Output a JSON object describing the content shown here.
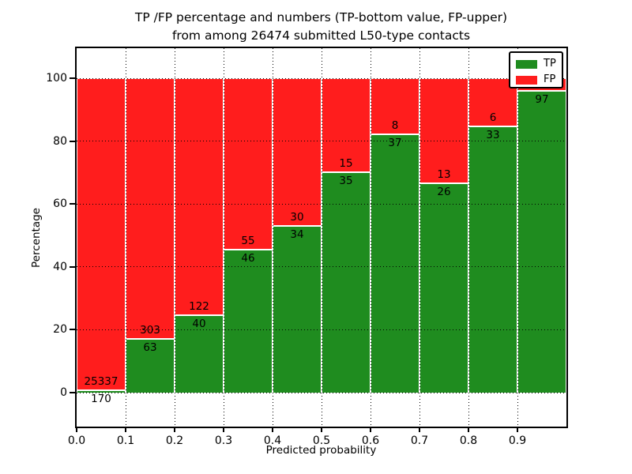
{
  "title": {
    "line1": "TP /FP percentage and numbers (TP-bottom value, FP-upper)",
    "line2": "from among 26474 submitted L50-type contacts"
  },
  "axes": {
    "x_label": "Predicted probability",
    "y_label": "Percentage",
    "x_tick_labels": [
      "0.0",
      "0.1",
      "0.2",
      "0.3",
      "0.4",
      "0.5",
      "0.6",
      "0.7",
      "0.8",
      "0.9"
    ],
    "y_tick_labels": [
      "0",
      "20",
      "40",
      "60",
      "80",
      "100"
    ],
    "y_tick_values": [
      0,
      20,
      40,
      60,
      80,
      100
    ],
    "x_range": [
      0.0,
      1.0
    ],
    "grid_style": "dotted"
  },
  "legend": {
    "position": "upper-right",
    "items": [
      {
        "label": "TP",
        "color": "#1f8c1f"
      },
      {
        "label": "FP",
        "color": "#ff1d1d"
      }
    ]
  },
  "colors": {
    "tp_green": "#1f8c1f",
    "fp_red": "#ff1d1d",
    "background": "#ffffff",
    "frame": "#000000",
    "grid": "#000000"
  },
  "chart_data": {
    "type": "bar",
    "stacked": true,
    "normalized": "each bin scaled to 100%",
    "series_order_bottom_to_top": [
      "TP",
      "FP"
    ],
    "title": "TP /FP percentage and numbers (TP-bottom value, FP-upper) from among 26474 submitted L50-type contacts",
    "xlabel": "Predicted probability",
    "ylabel": "Percentage",
    "total_submitted": 26474,
    "ylim_display": [
      -11,
      110
    ],
    "bins": [
      {
        "x_start": 0.0,
        "x_end": 0.1,
        "tp": 170,
        "fp": 25337,
        "tp_pct": 0.67
      },
      {
        "x_start": 0.1,
        "x_end": 0.2,
        "tp": 63,
        "fp": 303,
        "tp_pct": 17.21
      },
      {
        "x_start": 0.2,
        "x_end": 0.3,
        "tp": 40,
        "fp": 122,
        "tp_pct": 24.69
      },
      {
        "x_start": 0.3,
        "x_end": 0.4,
        "tp": 46,
        "fp": 55,
        "tp_pct": 45.54
      },
      {
        "x_start": 0.4,
        "x_end": 0.5,
        "tp": 34,
        "fp": 30,
        "tp_pct": 53.13
      },
      {
        "x_start": 0.5,
        "x_end": 0.6,
        "tp": 35,
        "fp": 15,
        "tp_pct": 70.0
      },
      {
        "x_start": 0.6,
        "x_end": 0.7,
        "tp": 37,
        "fp": 8,
        "tp_pct": 82.22
      },
      {
        "x_start": 0.7,
        "x_end": 0.8,
        "tp": 26,
        "fp": 13,
        "tp_pct": 66.67
      },
      {
        "x_start": 0.8,
        "x_end": 0.9,
        "tp": 33,
        "fp": 6,
        "tp_pct": 84.62
      },
      {
        "x_start": 0.9,
        "x_end": 1.0,
        "tp": 97,
        "fp": null,
        "fp_note": "FP label hidden behind legend",
        "tp_pct": 96.04
      }
    ]
  }
}
